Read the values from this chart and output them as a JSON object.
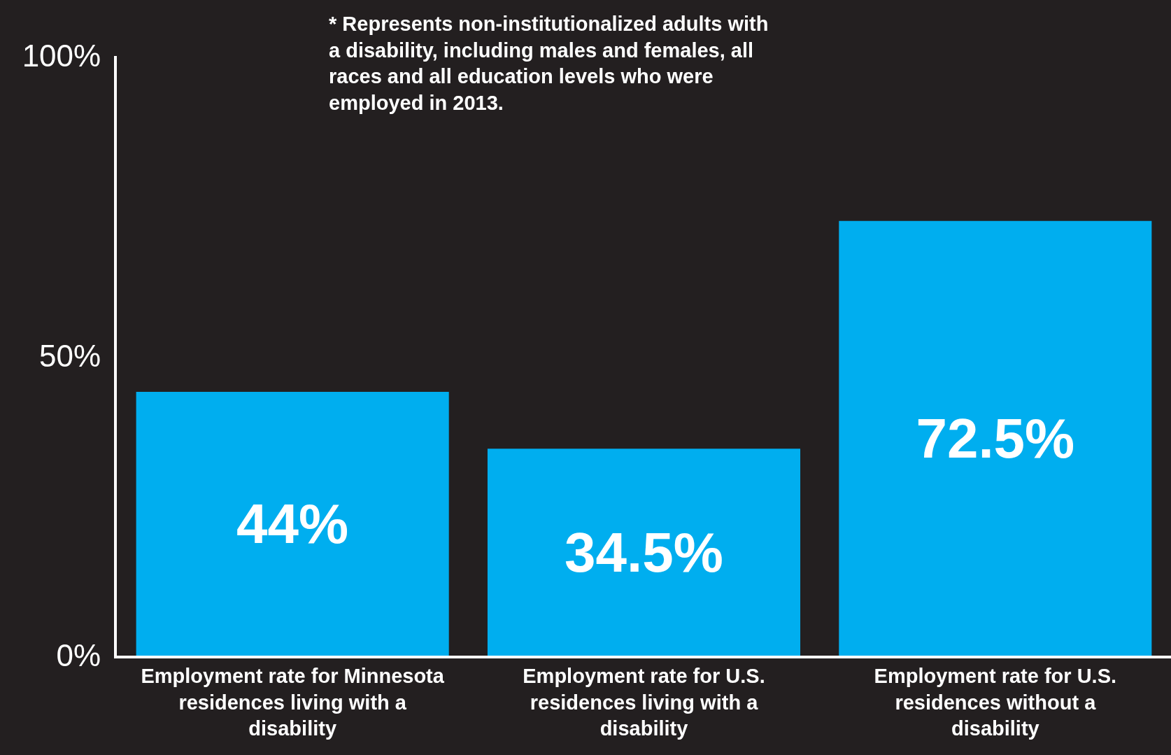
{
  "chart_data": {
    "type": "bar",
    "categories": [
      "Employment rate for Minnesota residences living with a disability",
      "Employment rate for U.S. residences living with a disability",
      "Employment rate for U.S. residences without a disability"
    ],
    "values": [
      44,
      34.5,
      72.5
    ],
    "value_labels": [
      "44%",
      "34.5%",
      "72.5%"
    ],
    "color": "#00aeef",
    "ylim": [
      0,
      100
    ],
    "yticks": [
      {
        "value": 0,
        "label": "0%"
      },
      {
        "value": 50,
        "label": "50%"
      },
      {
        "value": 100,
        "label": "100%"
      }
    ],
    "legend": false,
    "annotations": [
      "* Represents non-institutionalized adults with a disability, including males and females, all races and all education levels who were employed in 2013."
    ]
  }
}
